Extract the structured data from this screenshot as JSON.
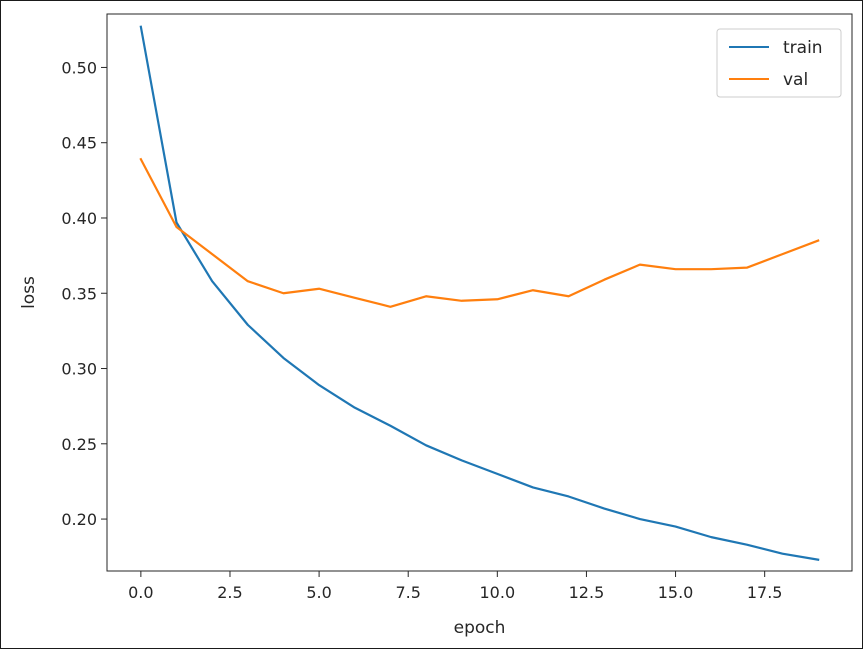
{
  "chart_data": {
    "type": "line",
    "title": "",
    "xlabel": "epoch",
    "ylabel": "loss",
    "xlim": [
      -0.95,
      19.95
    ],
    "ylim": [
      0.1655,
      0.5355
    ],
    "xticks": [
      0,
      2.5,
      5,
      7.5,
      10,
      12.5,
      15,
      17.5
    ],
    "xtick_labels": [
      "0.0",
      "2.5",
      "5.0",
      "7.5",
      "10.0",
      "12.5",
      "15.0",
      "17.5"
    ],
    "yticks": [
      0.2,
      0.25,
      0.3,
      0.35,
      0.4,
      0.45,
      0.5
    ],
    "ytick_labels": [
      "0.20",
      "0.25",
      "0.30",
      "0.35",
      "0.40",
      "0.45",
      "0.50"
    ],
    "grid": false,
    "legend_position": "top-right",
    "x": [
      0,
      1,
      2,
      3,
      4,
      5,
      6,
      7,
      8,
      9,
      10,
      11,
      12,
      13,
      14,
      15,
      16,
      17,
      18,
      19
    ],
    "series": [
      {
        "name": "train",
        "color": "#1f77b4",
        "values": [
          0.527,
          0.397,
          0.358,
          0.329,
          0.307,
          0.289,
          0.274,
          0.262,
          0.249,
          0.239,
          0.23,
          0.221,
          0.215,
          0.207,
          0.2,
          0.195,
          0.188,
          0.183,
          0.177,
          0.173
        ]
      },
      {
        "name": "val",
        "color": "#ff7f0e",
        "values": [
          0.439,
          0.394,
          0.376,
          0.358,
          0.35,
          0.353,
          0.347,
          0.341,
          0.348,
          0.345,
          0.346,
          0.352,
          0.348,
          0.359,
          0.369,
          0.366,
          0.366,
          0.367,
          0.376,
          0.385
        ]
      }
    ]
  }
}
